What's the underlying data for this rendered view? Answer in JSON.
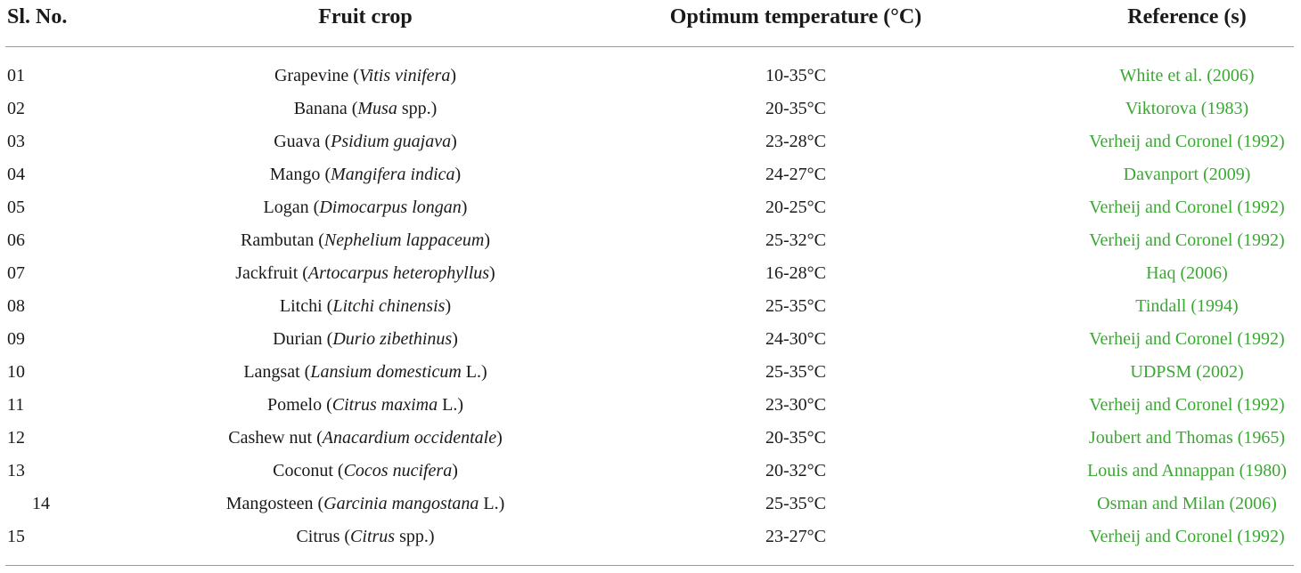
{
  "table": {
    "headers": {
      "sl_no": "Sl. No.",
      "fruit_crop": "Fruit crop",
      "optimum_temperature": "Optimum temperature (°C)",
      "references": "Reference (s)"
    },
    "rows": [
      {
        "sl": "01",
        "common": "Grapevine ",
        "sci_open": "(",
        "scientific": "Vitis vinifera",
        "sci_close": ")",
        "sci_paren_italic": true,
        "temp": "10-35°C",
        "ref": "White et al. (2006)"
      },
      {
        "sl": "02",
        "common": "Banana ",
        "sci_open": "(",
        "scientific": "Musa",
        "sci_close": " spp.)",
        "temp": "20-35°C",
        "ref": "Viktorova (1983)"
      },
      {
        "sl": "03",
        "common": "Guava ",
        "sci_open": "(",
        "scientific": "Psidium guajava",
        "sci_close": ")",
        "temp": "23-28°C",
        "ref": "Verheij and Coronel (1992)"
      },
      {
        "sl": "04",
        "common": "Mango ",
        "sci_open": "(",
        "scientific": "Mangifera indica",
        "sci_close": ")",
        "temp": "24-27°C",
        "ref": "Davanport (2009)"
      },
      {
        "sl": "05",
        "common": "Logan ",
        "sci_open": "(",
        "scientific": "Dimocarpus longan",
        "sci_close": ")",
        "temp": "20-25°C",
        "ref": "Verheij and Coronel (1992)"
      },
      {
        "sl": "06",
        "common": "Rambutan ",
        "sci_open": "(",
        "scientific": "Nephelium lappaceum",
        "sci_close": ")",
        "temp": "25-32°C",
        "ref": "Verheij and Coronel (1992)"
      },
      {
        "sl": "07",
        "common": "Jackfruit ",
        "sci_open": "(",
        "scientific": "Artocarpus heterophyllus",
        "sci_close": ")",
        "temp": "16-28°C",
        "ref": "Haq (2006)"
      },
      {
        "sl": "08",
        "common": "Litchi ",
        "sci_open": "(",
        "scientific": "Litchi chinensis",
        "sci_close": ")",
        "temp": "25-35°C",
        "ref": "Tindall (1994)"
      },
      {
        "sl": "09",
        "common": "Durian ",
        "sci_open": "(",
        "scientific": "Durio zibethinus",
        "sci_close": ")",
        "temp": "24-30°C",
        "ref": "Verheij and Coronel (1992)"
      },
      {
        "sl": "10",
        "common": "Langsat ",
        "sci_open": "(",
        "scientific": "Lansium domesticum",
        "sci_close": " L.)",
        "temp": "25-35°C",
        "ref": "UDPSM (2002)"
      },
      {
        "sl": "11",
        "common": "Pomelo ",
        "sci_open": "(",
        "scientific": "Citrus maxima",
        "sci_close": " L.)",
        "temp": "23-30°C",
        "ref": "Verheij and Coronel (1992)"
      },
      {
        "sl": "12",
        "common": "Cashew nut ",
        "sci_open": "(",
        "scientific": "Anacardium occidentale",
        "sci_close": ")",
        "temp": "20-35°C",
        "ref": "Joubert and Thomas (1965)"
      },
      {
        "sl": "13",
        "common": "Coconut ",
        "sci_open": "(",
        "scientific": "Cocos nucifera",
        "sci_close": ")",
        "temp": "20-32°C",
        "ref": "Louis and Annappan (1980)"
      },
      {
        "sl": "14",
        "common": "Mangosteen ",
        "sci_open": "(",
        "scientific": "Garcinia mangostana",
        "sci_close": " L.)",
        "temp": "25-35°C",
        "ref": "Osman and Milan (2006)"
      },
      {
        "sl": "15",
        "common": "Citrus ",
        "sci_open": "(",
        "scientific": "Citrus",
        "sci_close": " spp.)",
        "temp": "23-27°C",
        "ref": "Verheij and Coronel (1992)"
      }
    ]
  },
  "colors": {
    "reference_link": "#3aa832",
    "rule": "#9a9a9a",
    "text": "#1a1a1a"
  }
}
